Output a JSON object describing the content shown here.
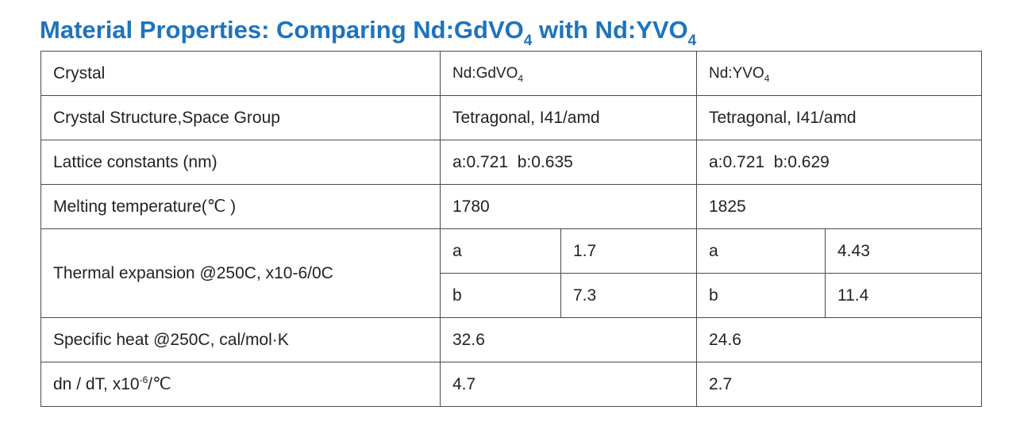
{
  "title": {
    "prefix": "Material Properties: Comparing Nd:GdVO",
    "sub1": "4",
    "middle": " with Nd:YVO",
    "sub2": "4"
  },
  "colors": {
    "title": "#1e73be",
    "border": "#4a4a4a",
    "text": "#222222"
  },
  "table": {
    "header": {
      "label": "Crystal",
      "col1": "Nd:GdVO",
      "col1_sub": "4",
      "col2": "Nd:YVO",
      "col2_sub": "4"
    },
    "structure": {
      "label": "Crystal Structure,Space Group",
      "col1": "Tetragonal, I41/amd",
      "col2": "Tetragonal, I41/amd"
    },
    "lattice": {
      "label": "Lattice constants (nm)",
      "col1": "a:0.721  b:0.635",
      "col2": "a:0.721  b:0.629"
    },
    "melting": {
      "label": "Melting temperature(℃ )",
      "col1": "1780",
      "col2": "1825"
    },
    "thermal": {
      "label": "Thermal expansion @250C, x10-6/0C",
      "a_axis": "a",
      "b_axis": "b",
      "col1_a": "1.7",
      "col1_b": "7.3",
      "col2_a": "4.43",
      "col2_b": "11.4"
    },
    "specific_heat": {
      "label": "Specific heat @250C, cal/mol·K",
      "col1": "32.6",
      "col2": "24.6"
    },
    "dndt": {
      "label_prefix": "dn / dT, x10",
      "label_sup": "-6",
      "label_suffix": "/℃",
      "col1": "4.7",
      "col2": "2.7"
    }
  }
}
